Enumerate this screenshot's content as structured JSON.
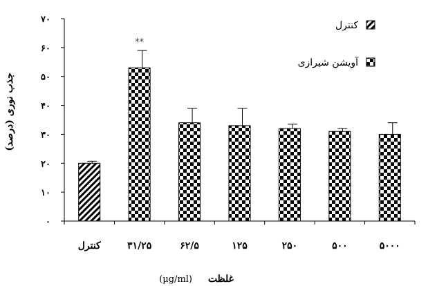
{
  "chart_data": {
    "type": "bar",
    "categories": [
      "کنترل",
      "۳۱/۲۵",
      "۶۲/۵",
      "۱۲۵",
      "۲۵۰",
      "۵۰۰",
      "۵۰۰۰"
    ],
    "values": [
      20,
      53,
      34,
      33,
      32,
      31,
      30
    ],
    "errors": [
      0.7,
      6,
      5,
      6,
      1.5,
      1,
      4
    ],
    "series_of_bar": [
      "control",
      "extract",
      "extract",
      "extract",
      "extract",
      "extract",
      "extract"
    ],
    "ylim": [
      0,
      70
    ],
    "yticks": [
      0,
      10,
      20,
      30,
      40,
      50,
      60,
      70
    ],
    "ytick_labels": [
      "۰",
      "۱۰",
      "۲۰",
      "۳۰",
      "۴۰",
      "۵۰",
      "۶۰",
      "۷۰"
    ],
    "ylabel": "جذب نوری (درصد)",
    "xlabel_bold": "غلظت",
    "xlabel_unit": "(µg/ml)",
    "annotations": [
      {
        "category_index": 1,
        "text": "**"
      }
    ],
    "legend": {
      "placement": "top-right",
      "entries": [
        {
          "key": "control",
          "label": "کنترل",
          "pattern": "diagonal-hatch"
        },
        {
          "key": "extract",
          "label": "آویشن شیرازی",
          "pattern": "checkerboard"
        }
      ]
    },
    "grid": false
  }
}
